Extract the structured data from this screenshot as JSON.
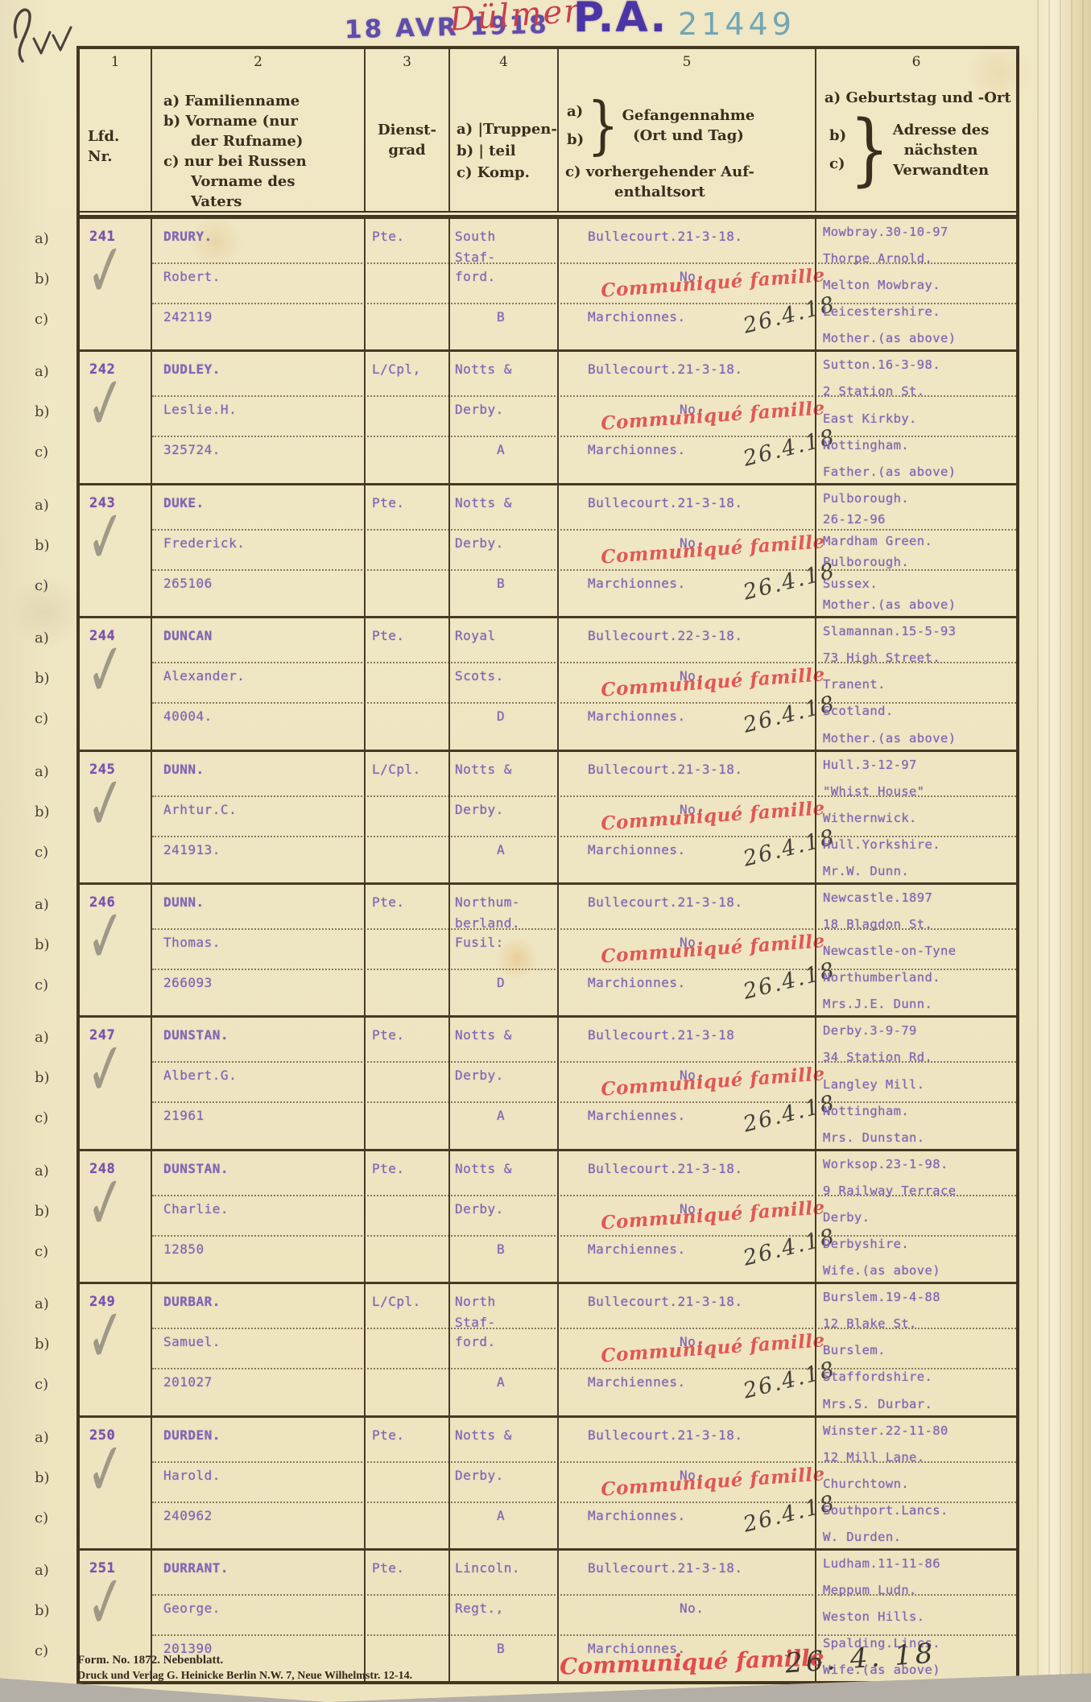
{
  "page": {
    "stamps": {
      "date_stamp": "18 AVR 1918",
      "location_handwritten": "Dülmen",
      "office_stamp": "P.A.",
      "serial_number": "21449"
    },
    "footer": {
      "form_line": "Form. No. 1872.   Nebenblatt.",
      "printer_line": "Druck und Verlag G. Heinicke Berlin N.W. 7, Neue Wilhelmstr. 12-14.",
      "red_stamp": "Communiqué famille",
      "handwritten_date": "26. 4. 18"
    }
  },
  "red_stamp_text": "Communiqué famille",
  "check_glyph": "✓",
  "margin_keys": [
    "a)",
    "b)",
    "c)"
  ],
  "header": {
    "col1": {
      "num": "1",
      "lines": [
        "Lfd.",
        "Nr."
      ]
    },
    "col2": {
      "num": "2",
      "lines": [
        "a) Familienname",
        "b) Vorname (nur",
        "der Rufname)",
        "c) nur bei Russen",
        "Vorname  des",
        "Vaters"
      ]
    },
    "col3": {
      "num": "3",
      "lines": [
        "Dienst-",
        "grad"
      ]
    },
    "col4": {
      "num": "4",
      "lines": [
        "a) |Truppen-",
        "b) |   teil",
        "c) Komp."
      ]
    },
    "col5": {
      "num": "5",
      "keys": [
        "a)",
        "b)"
      ],
      "brace": "}",
      "main_lines": [
        "Gefangennahme",
        "(Ort und Tag)"
      ],
      "c_lines": [
        "c) vorhergehender Auf-",
        "enthaltsort"
      ]
    },
    "col6": {
      "num": "6",
      "a_line": "a) Geburtstag und -Ort",
      "keys": [
        "b)",
        "c)"
      ],
      "brace": "}",
      "main_lines": [
        "Adresse  des",
        "nächsten",
        "Verwandten"
      ]
    }
  },
  "rows": [
    {
      "no": "241",
      "name": "DRURY.",
      "forename": "Robert.",
      "service_no": "242119",
      "rank": "Pte.",
      "unit_a": "South",
      "unit_a2": "Staf-",
      "unit_b": "ford.",
      "company": "B",
      "capture": "Bullecourt.21-3-18.",
      "capture_b": "No.",
      "previous_place": "Marchionnes.",
      "handwritten_date": "26.4.18",
      "red_stamp": true,
      "address_lines": [
        "Mowbray.30-10-97",
        "Thorpe Arnold.",
        "Melton Mowbray.",
        "Leicestershire.",
        "Mother.(as above)"
      ]
    },
    {
      "no": "242",
      "name": "DUDLEY.",
      "forename": "Leslie.H.",
      "service_no": "325724.",
      "rank": "L/Cpl,",
      "unit_a": "Notts &",
      "unit_b": "Derby.",
      "company": "A",
      "capture": "Bullecourt.21-3-18.",
      "capture_b": "No.",
      "previous_place": "Marchionnes.",
      "handwritten_date": "26.4.18",
      "red_stamp": true,
      "address_lines": [
        "Sutton.16-3-98.",
        "2 Station St.",
        "East Kirkby.",
        "Nottingham.",
        "Father.(as above)"
      ]
    },
    {
      "no": "243",
      "name": "DUKE.",
      "forename": "Frederick.",
      "service_no": "265106",
      "rank": "Pte.",
      "unit_a": "Notts &",
      "unit_b": "Derby.",
      "company": "B",
      "capture": "Bullecourt.21-3-18.",
      "capture_b": "No.",
      "previous_place": "Marchionnes.",
      "handwritten_date": "26.4.18",
      "red_stamp": true,
      "address_lines": [
        "Pulborough.",
        "26-12-96",
        "Mardham Green.",
        "Pulborough.",
        "Sussex.",
        "Mother.(as above)"
      ]
    },
    {
      "no": "244",
      "name": "DUNCAN",
      "forename": "Alexander.",
      "service_no": "40004.",
      "rank": "Pte.",
      "unit_a": "Royal",
      "unit_b": "Scots.",
      "company": "D",
      "capture": "Bullecourt.22-3-18.",
      "capture_b": "No.",
      "previous_place": "Marchionnes.",
      "handwritten_date": "26.4.18",
      "red_stamp": true,
      "address_lines": [
        "Slamannan.15-5-93",
        "73 High Street.",
        "Tranent.",
        "Scotland.",
        "Mother.(as above)"
      ]
    },
    {
      "no": "245",
      "name": "DUNN.",
      "forename": "Arhtur.C.",
      "service_no": "241913.",
      "rank": "L/Cpl.",
      "unit_a": "Notts &",
      "unit_b": "Derby.",
      "company": "A",
      "capture": "Bullecourt.21-3-18.",
      "capture_b": "No.",
      "previous_place": "Marchionnes.",
      "handwritten_date": "26.4.18",
      "red_stamp": true,
      "address_lines": [
        "Hull.3-12-97",
        "\"Whist House\"",
        "Withernwick.",
        "Hull.Yorkshire.",
        "Mr.W. Dunn."
      ]
    },
    {
      "no": "246",
      "name": "DUNN.",
      "forename": "Thomas.",
      "service_no": "266093",
      "rank": "Pte.",
      "unit_a": "Northum-",
      "unit_a2": "berland.",
      "unit_b": "Fusil:",
      "company": "D",
      "capture": "Bullecourt.21-3-18.",
      "capture_b": "No",
      "previous_place": "Marchionnes.",
      "handwritten_date": "26.4.18",
      "red_stamp": true,
      "address_lines": [
        "Newcastle.1897",
        "18 Blagdon St.",
        "Newcastle-on-Tyne",
        "Northumberland.",
        "Mrs.J.E. Dunn."
      ]
    },
    {
      "no": "247",
      "name": "DUNSTAN.",
      "forename": "Albert.G.",
      "service_no": "21961",
      "rank": "Pte.",
      "unit_a": "Notts &",
      "unit_b": "Derby.",
      "company": "A",
      "capture": "Bullecourt.21-3-18",
      "capture_b": "No.",
      "previous_place": "Marchiennes.",
      "handwritten_date": "26.4.18",
      "red_stamp": true,
      "address_lines": [
        "Derby.3-9-79",
        "34 Station Rd.",
        "Langley Mill.",
        "Nottingham.",
        "Mrs. Dunstan."
      ]
    },
    {
      "no": "248",
      "name": "DUNSTAN.",
      "forename": "Charlie.",
      "service_no": "12850",
      "rank": "Pte.",
      "unit_a": "Notts &",
      "unit_b": "Derby.",
      "company": "B",
      "capture": "Bullecourt.21-3-18.",
      "capture_b": "No.",
      "previous_place": "Marchiennes.",
      "handwritten_date": "26.4.18",
      "red_stamp": true,
      "address_lines": [
        "Worksop.23-1-98.",
        "9 Railway Terrace",
        "Derby.",
        "Derbyshire.",
        "Wife.(as above)"
      ]
    },
    {
      "no": "249",
      "name": "DURBAR.",
      "forename": "Samuel.",
      "service_no": "201027",
      "rank": "L/Cpl.",
      "unit_a": "North",
      "unit_a2": "Staf-",
      "unit_b": "ford.",
      "company": "A",
      "capture": "Bullecourt.21-3-18.",
      "capture_b": "No.",
      "previous_place": "Marchiennes.",
      "handwritten_date": "26.4.18",
      "red_stamp": true,
      "address_lines": [
        "Burslem.19-4-88",
        "12 Blake St.",
        "Burslem.",
        "Staffordshire.",
        "Mrs.S. Durbar."
      ]
    },
    {
      "no": "250",
      "name": "DURDEN.",
      "forename": "Harold.",
      "service_no": "240962",
      "rank": "Pte.",
      "unit_a": "Notts &",
      "unit_b": "Derby.",
      "company": "A",
      "capture": "Bullecourt.21-3-18.",
      "capture_b": "No.",
      "previous_place": "Marchionnes.",
      "handwritten_date": "26.4.18",
      "red_stamp": true,
      "address_lines": [
        "Winster.22-11-80",
        "12 Mill Lane.",
        "Churchtown.",
        "Southport.Lancs.",
        "W. Durden."
      ]
    },
    {
      "no": "251",
      "name": "DURRANT.",
      "forename": "George.",
      "service_no": "201390",
      "rank": "Pte.",
      "unit_a": "Lincoln.",
      "unit_b": "Regt.,",
      "company": "B",
      "capture": "Bullecourt.21-3-18.",
      "capture_b": "No.",
      "previous_place": "Marchionnes.",
      "handwritten_date": "",
      "red_stamp": false,
      "address_lines": [
        "Ludham.11-11-86",
        "Meppum Ludn.",
        "Weston Hills.",
        "Spalding.Lincs.",
        "Wife.(as above)"
      ]
    }
  ]
}
